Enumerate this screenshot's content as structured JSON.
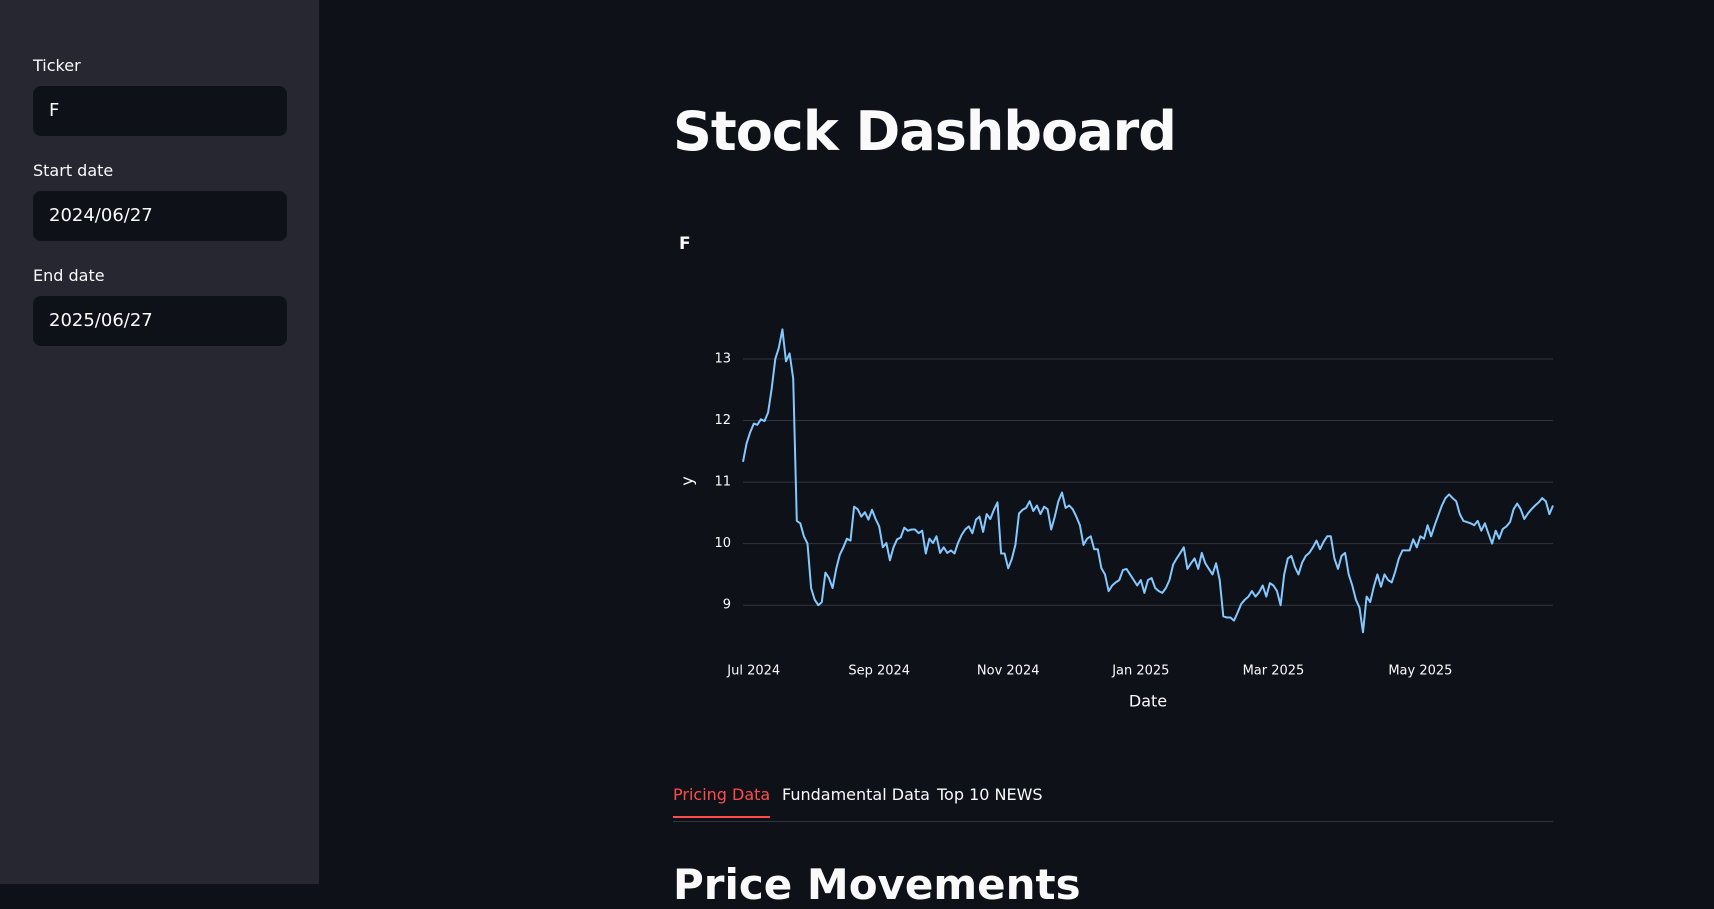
{
  "sidebar": {
    "fields": [
      {
        "label": "Ticker",
        "value": "F"
      },
      {
        "label": "Start date",
        "value": "2024/06/27"
      },
      {
        "label": "End date",
        "value": "2025/06/27"
      }
    ]
  },
  "header": {
    "title": "Stock Dashboard"
  },
  "chart_data": {
    "type": "line",
    "title": "F",
    "x_label": "Date",
    "y_label": "y",
    "color": "#83c9ff",
    "grid": true,
    "ylim": [
      8.5,
      13.6
    ],
    "yticks": [
      9,
      10,
      11,
      12,
      13
    ],
    "xticks": [
      {
        "value": "2024-07",
        "label": "Jul 2024"
      },
      {
        "value": "2024-09",
        "label": "Sep 2024"
      },
      {
        "value": "2024-11",
        "label": "Nov 2024"
      },
      {
        "value": "2025-01",
        "label": "Jan 2025"
      },
      {
        "value": "2025-03",
        "label": "Mar 2025"
      },
      {
        "value": "2025-05",
        "label": "May 2025"
      }
    ],
    "x": [
      "2024-06",
      "2024-06",
      "2024-06",
      "2024-07",
      "2024-07",
      "2024-07",
      "2024-07",
      "2024-07",
      "2024-07",
      "2024-07",
      "2024-07",
      "2024-07",
      "2024-07",
      "2024-07",
      "2024-07",
      "2024-07",
      "2024-07",
      "2024-07",
      "2024-07",
      "2024-08",
      "2024-08",
      "2024-08",
      "2024-08",
      "2024-08",
      "2024-08",
      "2024-08",
      "2024-08",
      "2024-08",
      "2024-08",
      "2024-08",
      "2024-08",
      "2024-08",
      "2024-08",
      "2024-08",
      "2024-08",
      "2024-08",
      "2024-08",
      "2024-08",
      "2024-09",
      "2024-09",
      "2024-09",
      "2024-09",
      "2024-09",
      "2024-09",
      "2024-09",
      "2024-09",
      "2024-09",
      "2024-09",
      "2024-09",
      "2024-09",
      "2024-09",
      "2024-09",
      "2024-09",
      "2024-09",
      "2024-09",
      "2024-10",
      "2024-10",
      "2024-10",
      "2024-10",
      "2024-10",
      "2024-10",
      "2024-10",
      "2024-10",
      "2024-10",
      "2024-10",
      "2024-10",
      "2024-10",
      "2024-10",
      "2024-10",
      "2024-10",
      "2024-10",
      "2024-10",
      "2024-10",
      "2024-10",
      "2024-11",
      "2024-11",
      "2024-11",
      "2024-11",
      "2024-11",
      "2024-11",
      "2024-11",
      "2024-11",
      "2024-11",
      "2024-11",
      "2024-11",
      "2024-11",
      "2024-11",
      "2024-11",
      "2024-11",
      "2024-11",
      "2024-11",
      "2024-11",
      "2024-11",
      "2024-12",
      "2024-12",
      "2024-12",
      "2024-12",
      "2024-12",
      "2024-12",
      "2024-12",
      "2024-12",
      "2024-12",
      "2024-12",
      "2024-12",
      "2024-12",
      "2024-12",
      "2024-12",
      "2024-12",
      "2024-12",
      "2024-12",
      "2024-12",
      "2025-01",
      "2025-01",
      "2025-01",
      "2025-01",
      "2025-01",
      "2025-01",
      "2025-01",
      "2025-01",
      "2025-01",
      "2025-01",
      "2025-01",
      "2025-01",
      "2025-01",
      "2025-01",
      "2025-01",
      "2025-01",
      "2025-01",
      "2025-01",
      "2025-01",
      "2025-02",
      "2025-02",
      "2025-02",
      "2025-02",
      "2025-02",
      "2025-02",
      "2025-02",
      "2025-02",
      "2025-02",
      "2025-02",
      "2025-02",
      "2025-02",
      "2025-02",
      "2025-02",
      "2025-02",
      "2025-02",
      "2025-02",
      "2025-02",
      "2025-03",
      "2025-03",
      "2025-03",
      "2025-03",
      "2025-03",
      "2025-03",
      "2025-03",
      "2025-03",
      "2025-03",
      "2025-03",
      "2025-03",
      "2025-03",
      "2025-03",
      "2025-03",
      "2025-03",
      "2025-03",
      "2025-03",
      "2025-03",
      "2025-03",
      "2025-03",
      "2025-03",
      "2025-04",
      "2025-04",
      "2025-04",
      "2025-04",
      "2025-04",
      "2025-04",
      "2025-04",
      "2025-04",
      "2025-04",
      "2025-04",
      "2025-04",
      "2025-04",
      "2025-04",
      "2025-04",
      "2025-04",
      "2025-04",
      "2025-04",
      "2025-04",
      "2025-04",
      "2025-04",
      "2025-05",
      "2025-05",
      "2025-05",
      "2025-05",
      "2025-05",
      "2025-05",
      "2025-05",
      "2025-05",
      "2025-05",
      "2025-05",
      "2025-05",
      "2025-05",
      "2025-05",
      "2025-05",
      "2025-05",
      "2025-05",
      "2025-05",
      "2025-05",
      "2025-05",
      "2025-06",
      "2025-06",
      "2025-06",
      "2025-06",
      "2025-06",
      "2025-06",
      "2025-06",
      "2025-06",
      "2025-06",
      "2025-06",
      "2025-06",
      "2025-06",
      "2025-06",
      "2025-06",
      "2025-06",
      "2025-06",
      "2025-06",
      "2025-06",
      "2025-06"
    ],
    "values": [
      11.33,
      11.63,
      11.81,
      11.95,
      11.93,
      12.02,
      11.99,
      12.13,
      12.52,
      13,
      13.18,
      13.48,
      12.96,
      13.09,
      12.68,
      10.37,
      10.33,
      10.12,
      10,
      9.28,
      9.09,
      9,
      9.05,
      9.53,
      9.44,
      9.28,
      9.59,
      9.82,
      9.94,
      10.08,
      10.05,
      10.6,
      10.56,
      10.44,
      10.51,
      10.39,
      10.55,
      10.4,
      10.28,
      9.94,
      10.01,
      9.73,
      9.94,
      10.07,
      10.1,
      10.26,
      10.21,
      10.23,
      10.23,
      10.17,
      10.21,
      9.84,
      10.08,
      10.01,
      10.12,
      9.85,
      9.94,
      9.85,
      9.89,
      9.84,
      10.01,
      10.14,
      10.23,
      10.28,
      10.17,
      10.39,
      10.44,
      10.19,
      10.48,
      10.4,
      10.55,
      10.67,
      9.84,
      9.84,
      9.6,
      9.75,
      9.98,
      10.49,
      10.55,
      10.58,
      10.69,
      10.53,
      10.62,
      10.48,
      10.6,
      10.56,
      10.23,
      10.44,
      10.69,
      10.83,
      10.58,
      10.62,
      10.56,
      10.44,
      10.3,
      9.98,
      10.08,
      10.12,
      9.91,
      9.91,
      9.6,
      9.5,
      9.23,
      9.32,
      9.37,
      9.41,
      9.57,
      9.59,
      9.5,
      9.41,
      9.32,
      9.41,
      9.2,
      9.41,
      9.44,
      9.28,
      9.23,
      9.2,
      9.28,
      9.41,
      9.66,
      9.76,
      9.85,
      9.94,
      9.59,
      9.68,
      9.76,
      9.59,
      9.85,
      9.68,
      9.59,
      9.5,
      9.68,
      9.41,
      8.82,
      8.8,
      8.8,
      8.75,
      8.88,
      9.02,
      9.09,
      9.14,
      9.23,
      9.14,
      9.21,
      9.32,
      9.14,
      9.36,
      9.32,
      9.23,
      9,
      9.5,
      9.76,
      9.8,
      9.62,
      9.5,
      9.69,
      9.8,
      9.85,
      9.94,
      10.05,
      9.91,
      10.03,
      10.12,
      10.12,
      9.76,
      9.59,
      9.8,
      9.85,
      9.5,
      9.32,
      9.09,
      8.96,
      8.56,
      9.14,
      9.05,
      9.3,
      9.5,
      9.3,
      9.5,
      9.41,
      9.37,
      9.55,
      9.76,
      9.89,
      9.89,
      9.89,
      10.07,
      9.94,
      10.12,
      10.08,
      10.3,
      10.12,
      10.3,
      10.46,
      10.62,
      10.74,
      10.8,
      10.74,
      10.69,
      10.48,
      10.37,
      10.35,
      10.33,
      10.3,
      10.37,
      10.21,
      10.33,
      10.16,
      10,
      10.21,
      10.08,
      10.24,
      10.28,
      10.35,
      10.56,
      10.65,
      10.56,
      10.4,
      10.49,
      10.56,
      10.62,
      10.67,
      10.74,
      10.69,
      10.48,
      10.62
    ]
  },
  "tabs": {
    "items": [
      "Pricing Data",
      "Fundamental Data",
      "Top 10 NEWS"
    ],
    "active": 0
  },
  "section": {
    "heading": "Price Movements"
  }
}
